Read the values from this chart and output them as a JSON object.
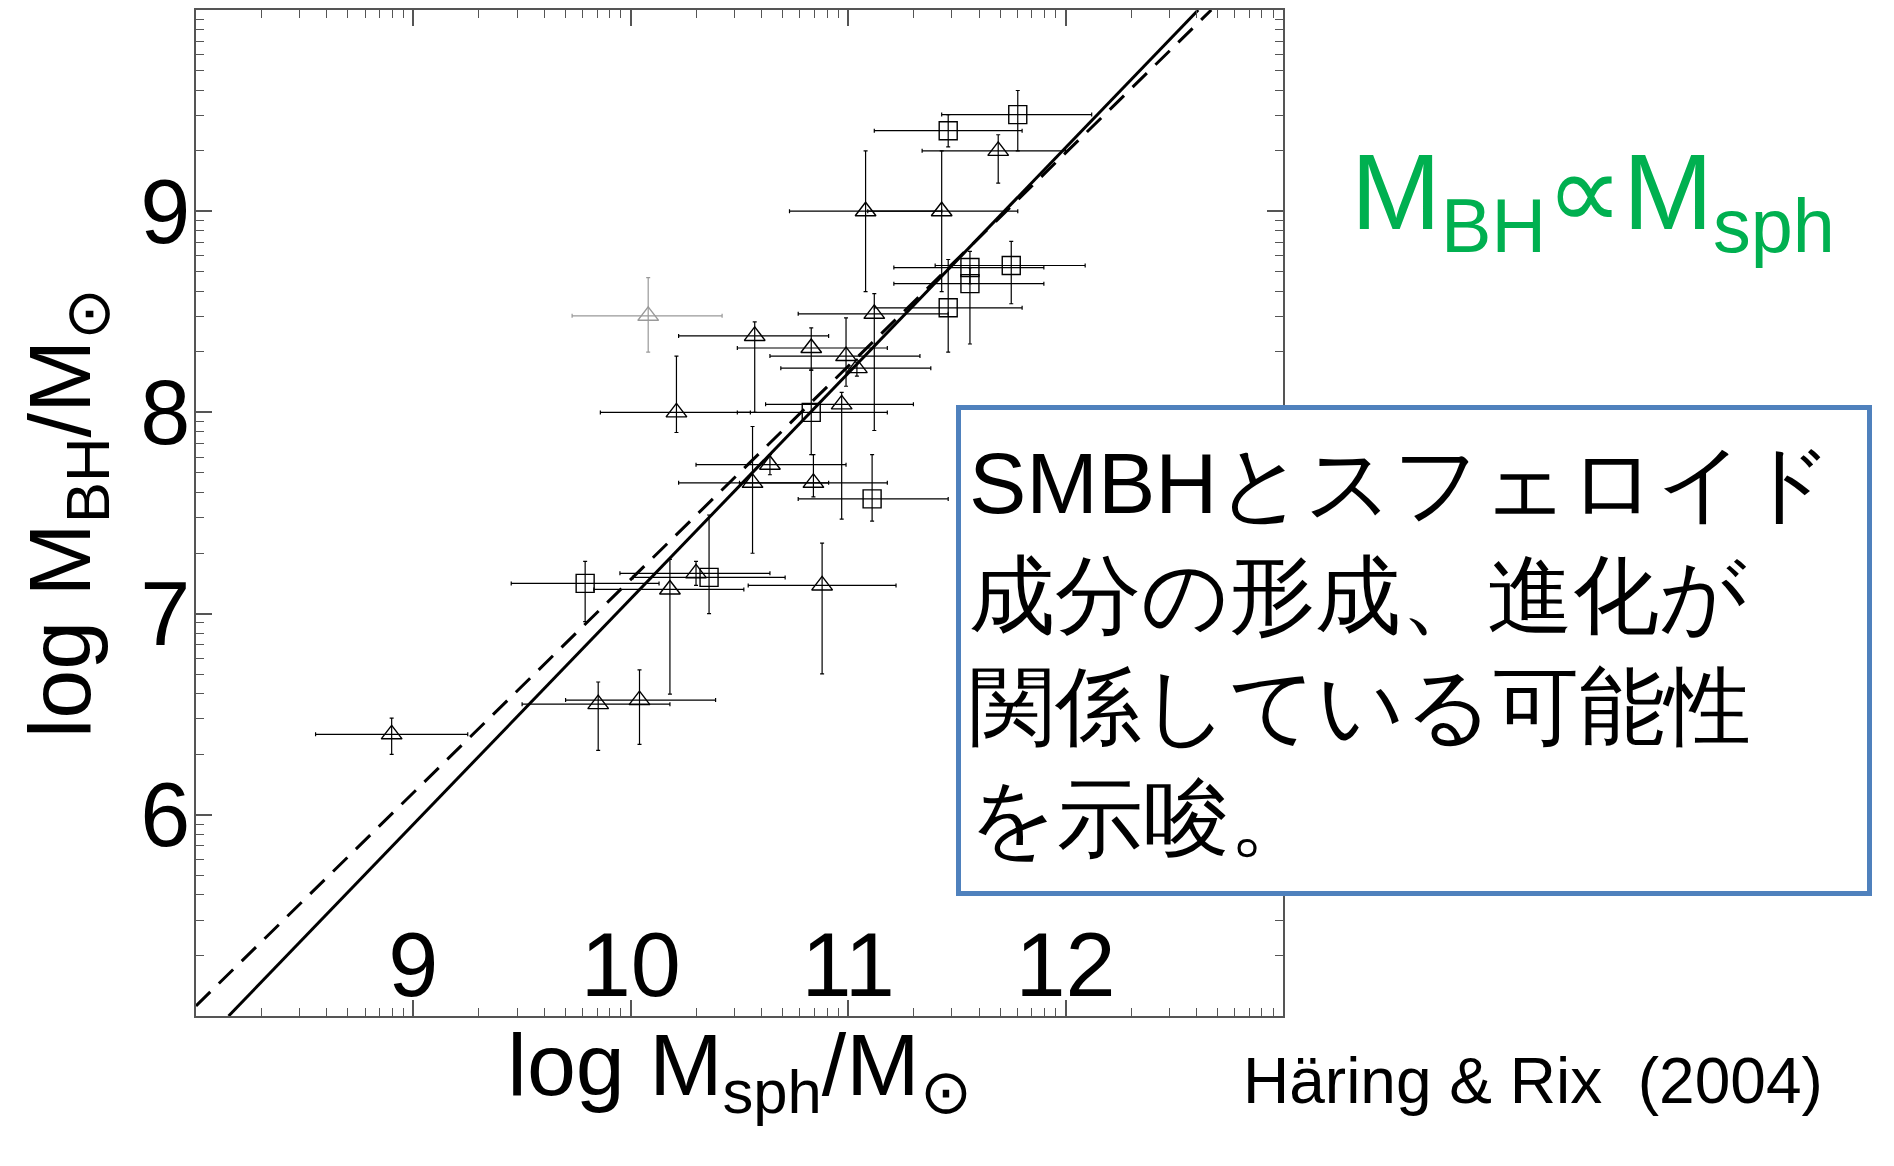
{
  "chart_data": {
    "type": "scatter",
    "xlabel": "log M$_{sph}$/M$_{⊙}$",
    "ylabel": "log M$_{BH}$/M$_{⊙}$",
    "annotations": [
      "M$_{BH}$∝M$_{sph}$",
      "SMBHとスフェロイド成分の形成、進化が関係している可能性を示唆。",
      "Häring & Rix  (2004)"
    ],
    "xlim": [
      8,
      13
    ],
    "ylim": [
      5,
      10
    ],
    "xticks": [
      {
        "value": 8.301,
        "label": null
      },
      {
        "value": 8.477,
        "label": null
      },
      {
        "value": 8.602,
        "label": null
      },
      {
        "value": 8.699,
        "label": null
      },
      {
        "value": 8.778,
        "label": null
      },
      {
        "value": 8.845,
        "label": null
      },
      {
        "value": 8.903,
        "label": null
      },
      {
        "value": 8.954,
        "label": null
      },
      9,
      {
        "value": 9.301,
        "label": null
      },
      {
        "value": 9.477,
        "label": null
      },
      {
        "value": 9.602,
        "label": null
      },
      {
        "value": 9.699,
        "label": null
      },
      {
        "value": 9.778,
        "label": null
      },
      {
        "value": 9.845,
        "label": null
      },
      {
        "value": 9.903,
        "label": null
      },
      {
        "value": 9.954,
        "label": null
      },
      10,
      {
        "value": 10.301,
        "label": null
      },
      {
        "value": 10.477,
        "label": null
      },
      {
        "value": 10.602,
        "label": null
      },
      {
        "value": 10.699,
        "label": null
      },
      {
        "value": 10.778,
        "label": null
      },
      {
        "value": 10.845,
        "label": null
      },
      {
        "value": 10.903,
        "label": null
      },
      {
        "value": 10.954,
        "label": null
      },
      11,
      {
        "value": 11.301,
        "label": null
      },
      {
        "value": 11.477,
        "label": null
      },
      {
        "value": 11.602,
        "label": null
      },
      {
        "value": 11.699,
        "label": null
      },
      {
        "value": 11.778,
        "label": null
      },
      {
        "value": 11.845,
        "label": null
      },
      {
        "value": 11.903,
        "label": null
      },
      {
        "value": 11.954,
        "label": null
      },
      12,
      {
        "value": 12.301,
        "label": null
      },
      {
        "value": 12.477,
        "label": null
      },
      {
        "value": 12.602,
        "label": null
      },
      {
        "value": 12.699,
        "label": null
      },
      {
        "value": 12.778,
        "label": null
      },
      {
        "value": 12.845,
        "label": null
      },
      {
        "value": 12.903,
        "label": null
      },
      {
        "value": 12.954,
        "label": null
      }
    ],
    "yticks": [
      {
        "value": 5.301,
        "label": null
      },
      {
        "value": 5.477,
        "label": null
      },
      {
        "value": 5.602,
        "label": null
      },
      {
        "value": 5.699,
        "label": null
      },
      {
        "value": 5.778,
        "label": null
      },
      {
        "value": 5.845,
        "label": null
      },
      {
        "value": 5.903,
        "label": null
      },
      {
        "value": 5.954,
        "label": null
      },
      6,
      {
        "value": 6.301,
        "label": null
      },
      {
        "value": 6.477,
        "label": null
      },
      {
        "value": 6.602,
        "label": null
      },
      {
        "value": 6.699,
        "label": null
      },
      {
        "value": 6.778,
        "label": null
      },
      {
        "value": 6.845,
        "label": null
      },
      {
        "value": 6.903,
        "label": null
      },
      {
        "value": 6.954,
        "label": null
      },
      7,
      {
        "value": 7.301,
        "label": null
      },
      {
        "value": 7.477,
        "label": null
      },
      {
        "value": 7.602,
        "label": null
      },
      {
        "value": 7.699,
        "label": null
      },
      {
        "value": 7.778,
        "label": null
      },
      {
        "value": 7.845,
        "label": null
      },
      {
        "value": 7.903,
        "label": null
      },
      {
        "value": 7.954,
        "label": null
      },
      8,
      {
        "value": 8.301,
        "label": null
      },
      {
        "value": 8.477,
        "label": null
      },
      {
        "value": 8.602,
        "label": null
      },
      {
        "value": 8.699,
        "label": null
      },
      {
        "value": 8.778,
        "label": null
      },
      {
        "value": 8.845,
        "label": null
      },
      {
        "value": 8.903,
        "label": null
      },
      {
        "value": 8.954,
        "label": null
      },
      9,
      {
        "value": 9.301,
        "label": null
      },
      {
        "value": 9.477,
        "label": null
      },
      {
        "value": 9.602,
        "label": null
      },
      {
        "value": 9.699,
        "label": null
      },
      {
        "value": 9.778,
        "label": null
      },
      {
        "value": 9.845,
        "label": null
      },
      {
        "value": 9.903,
        "label": null
      },
      {
        "value": 9.954,
        "label": null
      }
    ],
    "series": [
      {
        "type": "line",
        "color": "#000000",
        "line_style": "solid",
        "x": [
          8.15,
          12.61
        ],
        "values": [
          5,
          10
        ]
      },
      {
        "type": "line",
        "color": "#000000",
        "line_style": "dashed",
        "x": [
          8,
          12.67
        ],
        "values": [
          5.05,
          10
        ]
      },
      {
        "color": "#000000",
        "marker": "triangle",
        "x": [
          8.9,
          9.85,
          10.04,
          10.18,
          10.21,
          10.3,
          10.56,
          10.57,
          10.64,
          10.83,
          10.84,
          10.88,
          10.97,
          10.99,
          11.04,
          11.08,
          11.12,
          11.43,
          11.69
        ],
        "values": [
          6.4,
          6.55,
          6.57,
          7.12,
          8.0,
          7.2,
          7.65,
          8.38,
          7.74,
          8.32,
          7.65,
          7.14,
          8.04,
          8.28,
          8.22,
          9.0,
          8.49,
          9.0,
          9.3
        ],
        "xerrors": [
          [
            8.55,
            9.25
          ],
          [
            9.5,
            10.18
          ],
          [
            9.7,
            10.39
          ],
          [
            9.83,
            10.52
          ],
          [
            9.86,
            10.55
          ],
          [
            9.95,
            10.64
          ],
          [
            10.22,
            10.91
          ],
          [
            10.22,
            10.91
          ],
          [
            10.3,
            10.99
          ],
          [
            10.49,
            11.18
          ],
          [
            10.5,
            11.18
          ],
          [
            10.54,
            11.22
          ],
          [
            10.62,
            11.3
          ],
          [
            10.64,
            11.33
          ],
          [
            10.69,
            11.38
          ],
          [
            10.73,
            11.43
          ],
          [
            10.77,
            11.46
          ],
          [
            11.09,
            11.78
          ],
          [
            11.34,
            12.0
          ]
        ],
        "errors": [
          [
            6.3,
            6.48
          ],
          [
            6.32,
            6.66
          ],
          [
            6.35,
            6.72
          ],
          [
            6.6,
            7.27
          ],
          [
            7.9,
            8.28
          ],
          [
            7.14,
            7.26
          ],
          [
            7.3,
            7.93
          ],
          [
            8.0,
            8.45
          ],
          [
            7.69,
            7.79
          ],
          [
            8.21,
            8.42
          ],
          [
            7.58,
            7.79
          ],
          [
            6.7,
            7.35
          ],
          [
            7.47,
            8.1
          ],
          [
            8.13,
            8.47
          ],
          [
            8.18,
            8.25
          ],
          [
            8.6,
            9.3
          ],
          [
            7.91,
            8.59
          ],
          [
            8.6,
            9.3
          ],
          [
            9.14,
            9.38
          ]
        ]
      },
      {
        "color": "#000000",
        "marker": "square",
        "x": [
          9.79,
          10.36,
          10.83,
          11.11,
          11.46,
          11.46,
          11.56,
          11.56,
          11.75,
          11.78
        ],
        "values": [
          7.15,
          7.18,
          8.0,
          7.57,
          8.52,
          9.4,
          8.72,
          8.64,
          8.73,
          9.48
        ],
        "xerrors": [
          [
            9.45,
            10.13
          ],
          [
            10.01,
            10.71
          ],
          [
            10.49,
            11.18
          ],
          [
            10.77,
            11.46
          ],
          [
            11.12,
            11.8
          ],
          [
            11.12,
            11.8
          ],
          [
            11.21,
            11.9
          ],
          [
            11.21,
            11.9
          ],
          [
            11.4,
            12.09
          ],
          [
            11.43,
            12.12
          ]
        ],
        "errors": [
          [
            6.96,
            7.26
          ],
          [
            7.0,
            7.49
          ],
          [
            7.79,
            8.21
          ],
          [
            7.46,
            7.79
          ],
          [
            8.3,
            8.76
          ],
          [
            9.32,
            9.48
          ],
          [
            8.64,
            8.8
          ],
          [
            8.34,
            8.72
          ],
          [
            8.54,
            8.85
          ],
          [
            9.3,
            9.6
          ]
        ]
      },
      {
        "color": "#999999",
        "marker": "triangle",
        "x": [
          10.08
        ],
        "values": [
          8.48
        ],
        "xerrors": [
          [
            9.73,
            10.42
          ]
        ],
        "errors": [
          [
            8.3,
            8.67
          ]
        ]
      }
    ]
  }
}
